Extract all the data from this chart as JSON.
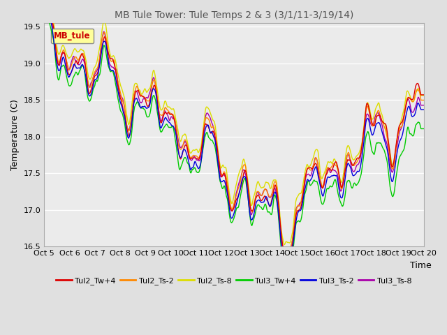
{
  "title": "MB Tule Tower: Tule Temps 2 & 3 (3/1/11-3/19/14)",
  "ylabel": "Temperature (C)",
  "xlabel": "Time",
  "legend_label": "MB_tule",
  "ylim": [
    16.5,
    19.55
  ],
  "yticks": [
    16.5,
    17.0,
    17.5,
    18.0,
    18.5,
    19.0,
    19.5
  ],
  "xtick_labels": [
    "Oct 5",
    "Oct 6",
    "Oct 7",
    "Oct 8",
    "Oct 9",
    "Oct 10",
    "Oct 11",
    "Oct 12",
    "Oct 13",
    "Oct 14",
    "Oct 15",
    "Oct 16",
    "Oct 17",
    "Oct 18",
    "Oct 19",
    "Oct 20"
  ],
  "series_colors": [
    "#dd0000",
    "#ff8800",
    "#dddd00",
    "#00cc00",
    "#0000dd",
    "#aa00aa"
  ],
  "series_labels": [
    "Tul2_Tw+4",
    "Tul2_Ts-2",
    "Tul2_Ts-8",
    "Tul3_Tw+4",
    "Tul3_Ts-2",
    "Tul3_Ts-8"
  ],
  "bg_color": "#e0e0e0",
  "plot_bg_color": "#ebebeb",
  "grid_color": "#ffffff",
  "title_color": "#555555",
  "title_fontsize": 10,
  "axis_fontsize": 9,
  "tick_fontsize": 8
}
